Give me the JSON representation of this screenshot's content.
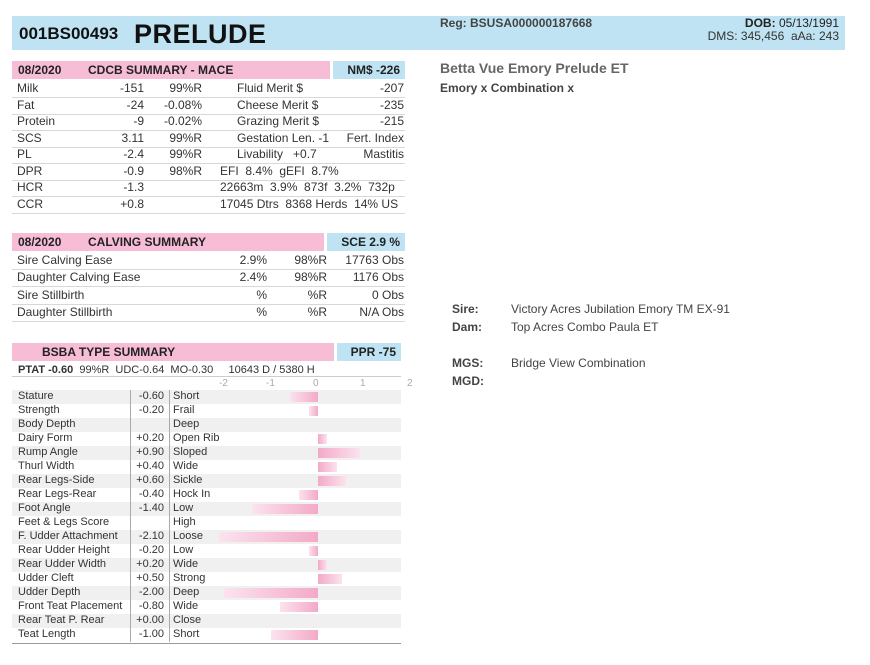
{
  "header": {
    "id": "001BS00493",
    "name": "PRELUDE",
    "reg": "Reg: BSUSA000000187668",
    "dob_label": "DOB:",
    "dob": "05/13/1991",
    "dms": "DMS: 345,456",
    "aaa": "aAa: 243"
  },
  "title": "Betta Vue Emory Prelude ET",
  "subtitle": "Emory x Combination x",
  "cdcb": {
    "date": "08/2020",
    "label": "CDCB SUMMARY - MACE",
    "nm": "NM$ -226",
    "rows": [
      {
        "trait": "Milk",
        "val": "-151",
        "rel": "99%R",
        "t2": "Fluid Merit $",
        "v2": "-207"
      },
      {
        "trait": "Fat",
        "val": "-24",
        "rel": "-0.08%",
        "t2": "Cheese Merit $",
        "v2": "-235"
      },
      {
        "trait": "Protein",
        "val": "-9",
        "rel": "-0.02%",
        "t2": "Grazing Merit $",
        "v2": "-215"
      },
      {
        "trait": "SCS",
        "val": "3.11",
        "rel": "99%R",
        "t2": "Gestation Len. -1",
        "v2": "Fert. Index"
      },
      {
        "trait": "PL",
        "val": "-2.4",
        "rel": "99%R",
        "t2": "Livability   +0.7",
        "v2": "Mastitis"
      },
      {
        "trait": "DPR",
        "val": "-0.9",
        "rel": "98%R",
        "t2": "EFI  8.4%  gEFI  8.7%",
        "v2": ""
      },
      {
        "trait": "HCR",
        "val": "-1.3",
        "rel": "",
        "t2": "22663m  3.9%  873f  3.2%  732p",
        "v2": ""
      },
      {
        "trait": "CCR",
        "val": "+0.8",
        "rel": "",
        "t2": "17045 Dtrs  8368 Herds  14% US",
        "v2": ""
      }
    ]
  },
  "calving": {
    "date": "08/2020",
    "label": "CALVING SUMMARY",
    "sce": "SCE 2.9 %",
    "rows": [
      {
        "trait": "Sire Calving Ease",
        "pct": "2.9%",
        "rel": "98%R",
        "obs": "17763 Obs"
      },
      {
        "trait": "Daughter Calving Ease",
        "pct": "2.4%",
        "rel": "98%R",
        "obs": "1176 Obs"
      },
      {
        "trait": "Sire Stillbirth",
        "pct": "%",
        "rel": "%R",
        "obs": "0 Obs"
      },
      {
        "trait": "Daughter Stillbirth",
        "pct": "%",
        "rel": "%R",
        "obs": "N/A Obs"
      }
    ]
  },
  "type": {
    "label": "BSBA TYPE SUMMARY",
    "ppr": "PPR -75",
    "ptat": "PTAT -0.60",
    "stats": "99%R  UDC-0.64  MO-0.30     10643 D / 5380 H",
    "axis_ticks": [
      "-2",
      "-1",
      "0",
      "1",
      "2"
    ],
    "axis_min": -2,
    "axis_max": 2,
    "rows": [
      {
        "trait": "Stature",
        "value": -0.6,
        "display": "-0.60",
        "desc": "Short"
      },
      {
        "trait": "Strength",
        "value": -0.2,
        "display": "-0.20",
        "desc": "Frail"
      },
      {
        "trait": "Body Depth",
        "value": null,
        "display": "",
        "desc": "Deep"
      },
      {
        "trait": "Dairy Form",
        "value": 0.2,
        "display": "+0.20",
        "desc": "Open Rib"
      },
      {
        "trait": "Rump Angle",
        "value": 0.9,
        "display": "+0.90",
        "desc": "Sloped"
      },
      {
        "trait": "Thurl Width",
        "value": 0.4,
        "display": "+0.40",
        "desc": "Wide"
      },
      {
        "trait": "Rear Legs-Side",
        "value": 0.6,
        "display": "+0.60",
        "desc": "Sickle"
      },
      {
        "trait": "Rear Legs-Rear",
        "value": -0.4,
        "display": "-0.40",
        "desc": "Hock In"
      },
      {
        "trait": "Foot Angle",
        "value": -1.4,
        "display": "-1.40",
        "desc": "Low"
      },
      {
        "trait": "Feet & Legs Score",
        "value": null,
        "display": "",
        "desc": "High"
      },
      {
        "trait": "F. Udder Attachment",
        "value": -2.1,
        "display": "-2.10",
        "desc": "Loose"
      },
      {
        "trait": "Rear Udder Height",
        "value": -0.2,
        "display": "-0.20",
        "desc": "Low"
      },
      {
        "trait": "Rear Udder Width",
        "value": 0.2,
        "display": "+0.20",
        "desc": "Wide"
      },
      {
        "trait": "Udder Cleft",
        "value": 0.5,
        "display": "+0.50",
        "desc": "Strong"
      },
      {
        "trait": "Udder Depth",
        "value": -2.0,
        "display": "-2.00",
        "desc": "Deep"
      },
      {
        "trait": "Front Teat Placement",
        "value": -0.8,
        "display": "-0.80",
        "desc": "Wide"
      },
      {
        "trait": "Rear Teat P. Rear",
        "value": 0.0,
        "display": "+0.00",
        "desc": "Close"
      },
      {
        "trait": "Teat Length",
        "value": -1.0,
        "display": "-1.00",
        "desc": "Short"
      }
    ]
  },
  "pedigree": {
    "sire_label": "Sire:",
    "sire": "Victory Acres Jubilation Emory TM EX-91",
    "dam_label": "Dam:",
    "dam": "Top Acres Combo Paula ET",
    "mgs_label": "MGS:",
    "mgs": "Bridge View Combination",
    "mgd_label": "MGD:",
    "mgd": ""
  },
  "colors": {
    "pink": "#f7bcd6",
    "blue": "#bfe3f3"
  }
}
